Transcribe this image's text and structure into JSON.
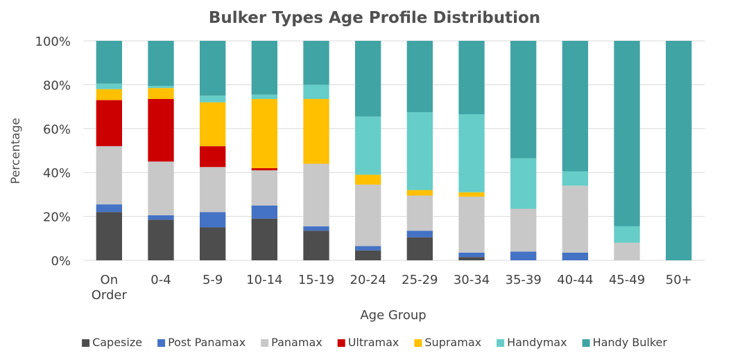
{
  "chart_data": {
    "type": "bar",
    "stacked": true,
    "title": "Bulker Types Age Profile Distribution",
    "xlabel": "Age Group",
    "ylabel": "Percentage",
    "ylim": [
      0,
      100
    ],
    "y_ticks": [
      "0%",
      "20%",
      "40%",
      "60%",
      "80%",
      "100%"
    ],
    "grid": true,
    "legend_position": "bottom",
    "categories": [
      [
        "On",
        "Order"
      ],
      [
        "0-4"
      ],
      [
        "5-9"
      ],
      [
        "10-14"
      ],
      [
        "15-19"
      ],
      [
        "20-24"
      ],
      [
        "25-29"
      ],
      [
        "30-34"
      ],
      [
        "35-39"
      ],
      [
        "40-44"
      ],
      [
        "45-49"
      ],
      [
        "50+"
      ]
    ],
    "series": [
      {
        "name": "Capesize",
        "color": "#4d4d4d",
        "values": [
          22,
          18.5,
          15,
          19,
          13.5,
          4.5,
          10.5,
          1.5,
          0,
          0,
          0,
          0
        ]
      },
      {
        "name": "Post Panamax",
        "color": "#4472c4",
        "values": [
          3.5,
          2,
          7,
          6,
          2,
          2,
          3,
          2,
          4,
          3.5,
          0,
          0
        ]
      },
      {
        "name": "Panamax",
        "color": "#c8c8c8",
        "values": [
          26.5,
          24.5,
          20.5,
          16,
          28.5,
          28,
          16,
          25.5,
          19.5,
          30.5,
          8,
          0
        ]
      },
      {
        "name": "Ultramax",
        "color": "#cc0000",
        "values": [
          21,
          28.5,
          9.5,
          1,
          0,
          0,
          0,
          0,
          0,
          0,
          0,
          0
        ]
      },
      {
        "name": "Supramax",
        "color": "#ffc000",
        "values": [
          5,
          5,
          20,
          31.5,
          29.5,
          4.5,
          2.5,
          2,
          0,
          0,
          0,
          0
        ]
      },
      {
        "name": "Handymax",
        "color": "#66cdc8",
        "values": [
          2.5,
          1,
          3,
          2,
          6.5,
          26.5,
          35.5,
          35.5,
          23,
          6.5,
          7.5,
          0
        ]
      },
      {
        "name": "Handy Bulker",
        "color": "#40a4a4",
        "values": [
          19.5,
          20.5,
          25,
          24.5,
          20,
          34.5,
          32.5,
          33.5,
          53.5,
          59.5,
          84.5,
          100
        ]
      }
    ]
  }
}
